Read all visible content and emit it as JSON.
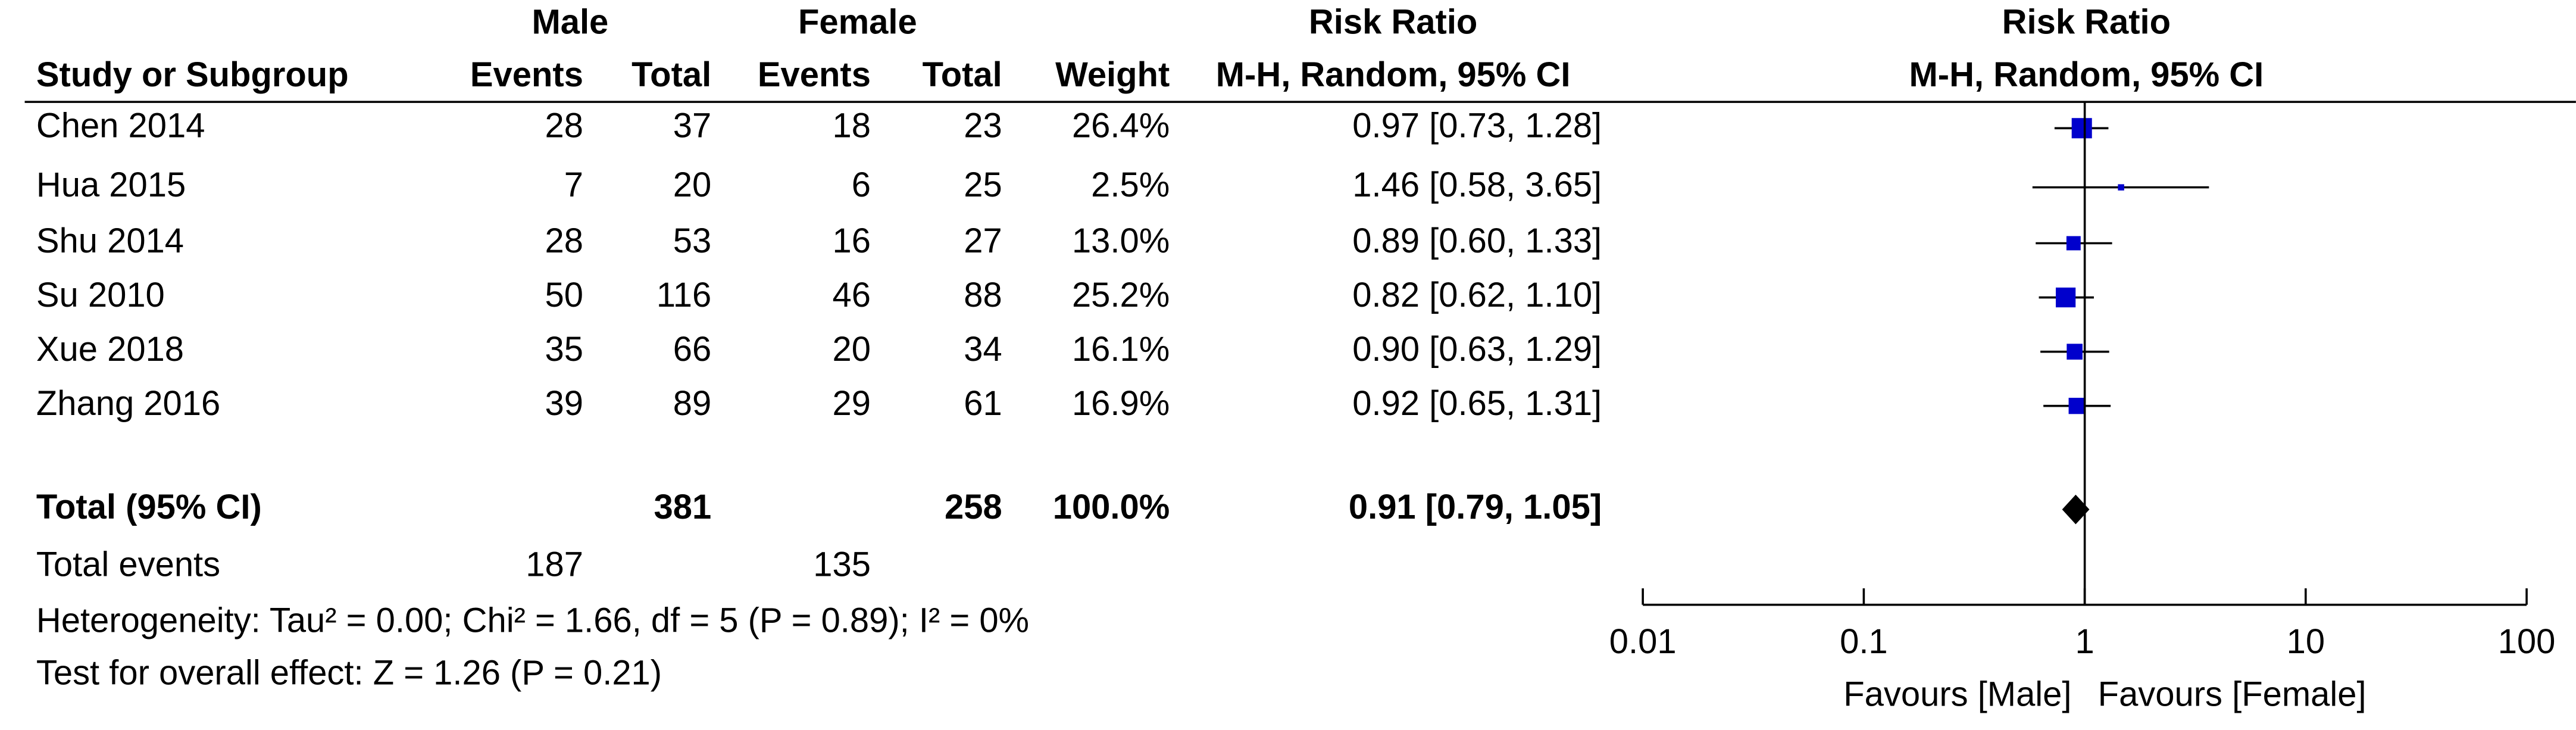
{
  "headers": {
    "male": "Male",
    "female": "Female",
    "risk_ratio": "Risk Ratio",
    "risk_ratio_plot": "Risk Ratio",
    "study": "Study or Subgroup",
    "events_m": "Events",
    "total_m": "Total",
    "events_f": "Events",
    "total_f": "Total",
    "weight": "Weight",
    "method": "M-H, Random, 95% CI",
    "method_plot": "M-H, Random, 95% CI"
  },
  "chart_data": {
    "type": "forest",
    "log_scale": true,
    "xlim": [
      0.01,
      100
    ],
    "xticks": [
      0.01,
      0.1,
      1,
      10,
      100
    ],
    "x_label_left": "Favours [Male]",
    "x_label_right": "Favours [Female]",
    "square_color": "#0000cc",
    "studies": [
      {
        "name": "Chen 2014",
        "male_events": 28,
        "male_total": 37,
        "female_events": 18,
        "female_total": 23,
        "weight": 26.4,
        "weight_label": "26.4%",
        "rr": 0.97,
        "ci_low": 0.73,
        "ci_high": 1.28,
        "ci_label": "0.97 [0.73, 1.28]"
      },
      {
        "name": "Hua 2015",
        "male_events": 7,
        "male_total": 20,
        "female_events": 6,
        "female_total": 25,
        "weight": 2.5,
        "weight_label": "2.5%",
        "rr": 1.46,
        "ci_low": 0.58,
        "ci_high": 3.65,
        "ci_label": "1.46 [0.58, 3.65]"
      },
      {
        "name": "Shu 2014",
        "male_events": 28,
        "male_total": 53,
        "female_events": 16,
        "female_total": 27,
        "weight": 13.0,
        "weight_label": "13.0%",
        "rr": 0.89,
        "ci_low": 0.6,
        "ci_high": 1.33,
        "ci_label": "0.89 [0.60, 1.33]"
      },
      {
        "name": "Su 2010",
        "male_events": 50,
        "male_total": 116,
        "female_events": 46,
        "female_total": 88,
        "weight": 25.2,
        "weight_label": "25.2%",
        "rr": 0.82,
        "ci_low": 0.62,
        "ci_high": 1.1,
        "ci_label": "0.82 [0.62, 1.10]"
      },
      {
        "name": "Xue 2018",
        "male_events": 35,
        "male_total": 66,
        "female_events": 20,
        "female_total": 34,
        "weight": 16.1,
        "weight_label": "16.1%",
        "rr": 0.9,
        "ci_low": 0.63,
        "ci_high": 1.29,
        "ci_label": "0.90 [0.63, 1.29]"
      },
      {
        "name": "Zhang 2016",
        "male_events": 39,
        "male_total": 89,
        "female_events": 29,
        "female_total": 61,
        "weight": 16.9,
        "weight_label": "16.9%",
        "rr": 0.92,
        "ci_low": 0.65,
        "ci_high": 1.31,
        "ci_label": "0.92 [0.65, 1.31]"
      }
    ],
    "total": {
      "name": "Total (95% CI)",
      "male_total": 381,
      "female_total": 258,
      "weight_label": "100.0%",
      "rr": 0.91,
      "ci_low": 0.79,
      "ci_high": 1.05,
      "ci_label": "0.91 [0.79, 1.05]"
    }
  },
  "total_events": {
    "label": "Total events",
    "male": 187,
    "female": 135
  },
  "heterogeneity": "Heterogeneity: Tau² = 0.00; Chi² = 1.66, df = 5 (P = 0.89); I² = 0%",
  "overall_effect": "Test for overall effect: Z = 1.26 (P = 0.21)"
}
